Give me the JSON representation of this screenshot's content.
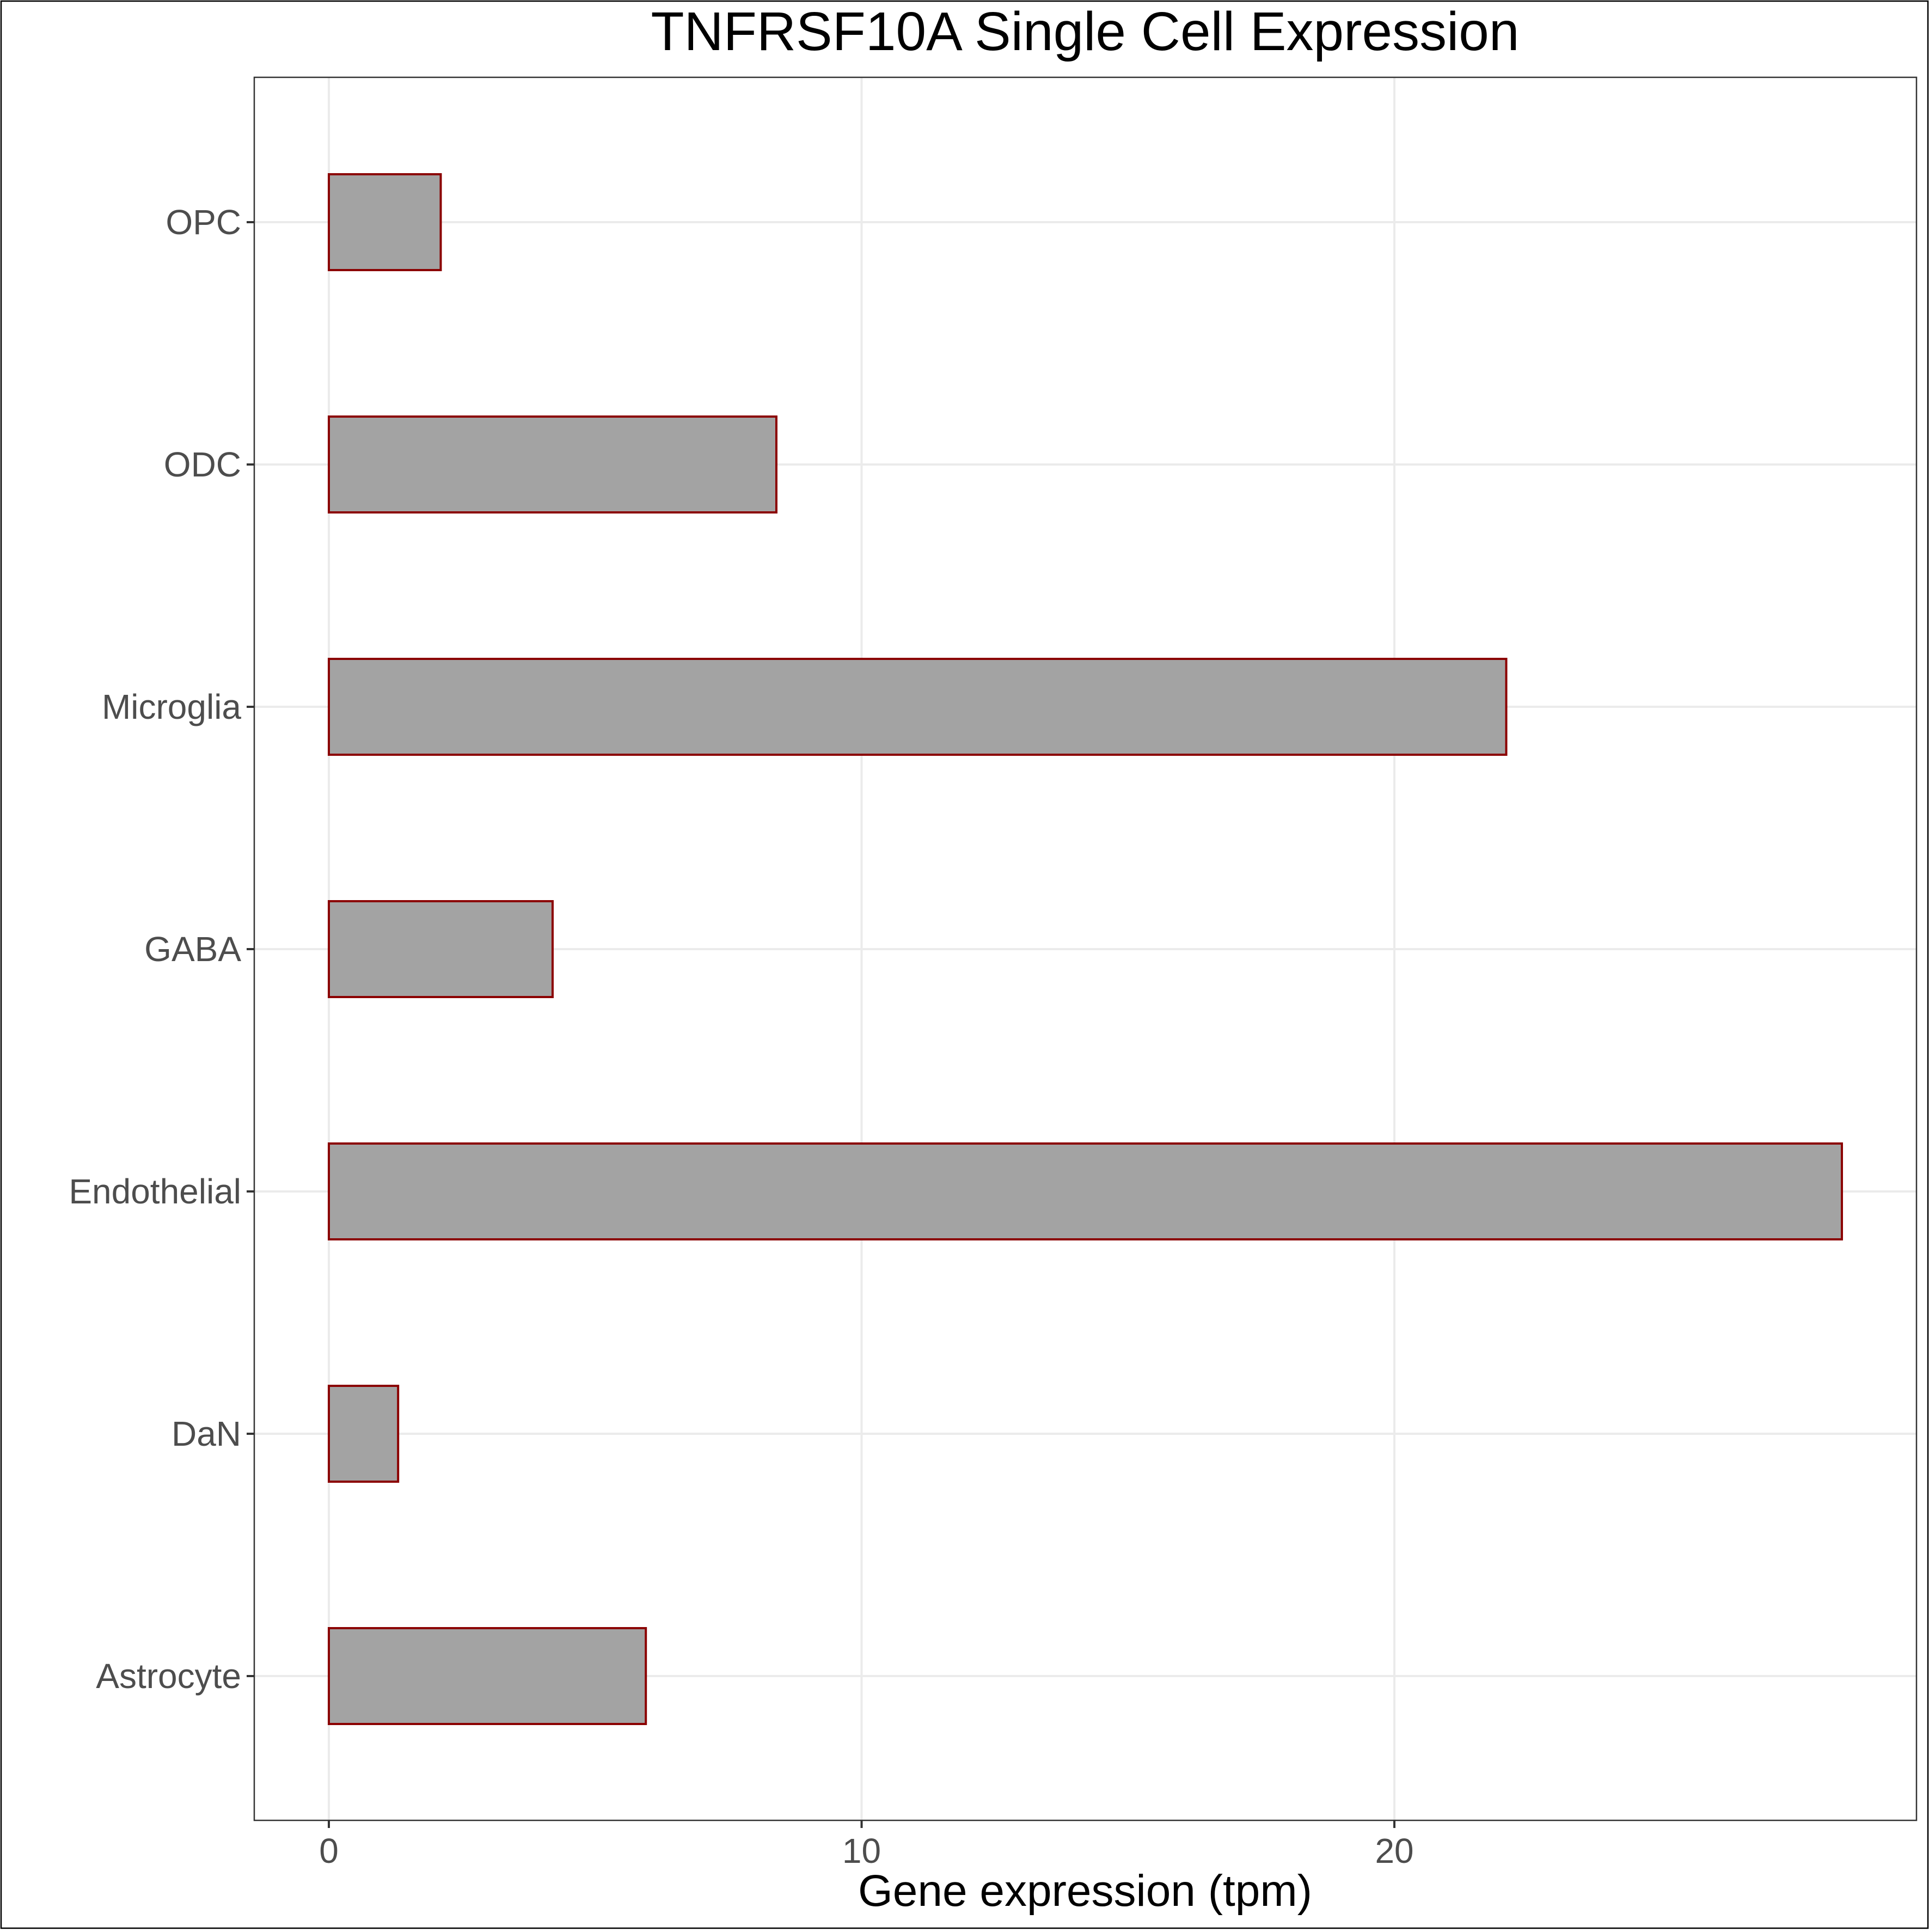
{
  "chart_data": {
    "type": "bar",
    "orientation": "horizontal",
    "title": "TNFRSF10A Single Cell Expression",
    "xlabel": "Gene expression (tpm)",
    "ylabel": "",
    "categories": [
      "Astrocyte",
      "DaN",
      "Endothelial",
      "GABA",
      "Microglia",
      "ODC",
      "OPC"
    ],
    "values": [
      5.95,
      1.3,
      28.4,
      4.2,
      22.1,
      8.4,
      2.1
    ],
    "xlim": [
      -1.4,
      29.8
    ],
    "xticks": [
      0,
      10,
      20
    ],
    "grid": true,
    "legend": "none",
    "colors": {
      "bar_fill": "#a3a3a3",
      "bar_stroke": "#8b0000",
      "grid": "#ebebeb",
      "tick_text": "#4d4d4d"
    }
  }
}
